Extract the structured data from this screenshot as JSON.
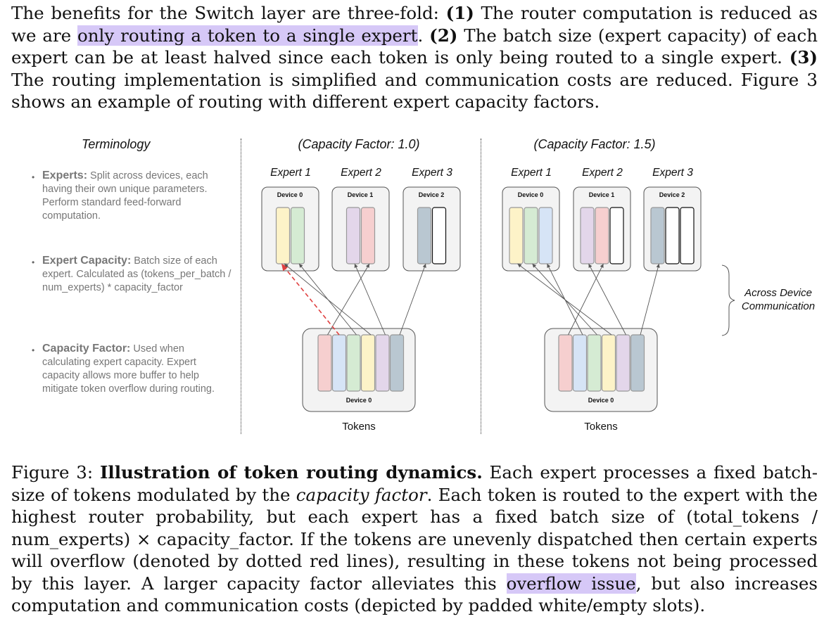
{
  "paragraph_top": {
    "intro": "The benefits for the Switch layer are three-fold: ",
    "b1": "(1)",
    "t1": " The router computation is reduced as we are ",
    "hl1": "only routing a token to a single expert",
    "t1b": ". ",
    "b2": "(2)",
    "t2": " The batch size (expert capacity) of each expert can be at least halved since each token is only being routed to a single expert. ",
    "b3": "(3)",
    "t3": " The routing implementation is simplified and communication costs are reduced.  Figure 3 shows an example of routing with different expert capacity factors."
  },
  "figure": {
    "terminology": {
      "title": "Terminology",
      "items": [
        {
          "name": "Experts:",
          "desc": " Split across devices, each having their own unique parameters. Perform standard feed-forward computation."
        },
        {
          "name": "Expert Capacity:",
          "desc": " Batch size of each expert. Calculated as (tokens_per_batch / num_experts) * capacity_factor"
        },
        {
          "name": "Capacity Factor:",
          "desc": " Used when calculating expert capacity. Expert capacity allows more buffer to help mitigate token overflow during routing."
        }
      ]
    },
    "panels": [
      {
        "title": "(Capacity Factor: 1.0)",
        "experts": [
          {
            "label": "Expert 1",
            "device": "Device 0",
            "slots": [
              "#fdf3c8",
              "#d5ebd3"
            ]
          },
          {
            "label": "Expert 2",
            "device": "Device 1",
            "slots": [
              "#e3d6ea",
              "#f6cfcf"
            ]
          },
          {
            "label": "Expert 3",
            "device": "Device 2",
            "slots": [
              "#b9c7d1",
              "#ffffff"
            ]
          }
        ],
        "tokens_device": "Device 0",
        "tokens_label": "Tokens"
      },
      {
        "title": "(Capacity Factor: 1.5)",
        "experts": [
          {
            "label": "Expert 1",
            "device": "Device 0",
            "slots": [
              "#fdf3c8",
              "#d5ebd3",
              "#d6e4f6"
            ]
          },
          {
            "label": "Expert 2",
            "device": "Device 1",
            "slots": [
              "#e3d6ea",
              "#f6cfcf",
              "#ffffff"
            ]
          },
          {
            "label": "Expert 3",
            "device": "Device 2",
            "slots": [
              "#b9c7d1",
              "#ffffff",
              "#ffffff"
            ]
          }
        ],
        "tokens_device": "Device 0",
        "tokens_label": "Tokens"
      }
    ],
    "tokens": [
      "#f6cfcf",
      "#d6e4f6",
      "#d5ebd3",
      "#fdf3c8",
      "#e3d6ea",
      "#b9c7d1"
    ],
    "comm_label_1": "Across Device",
    "comm_label_2": "Communication",
    "overflow_color": "#e04040"
  },
  "caption": {
    "fig": "Figure 3: ",
    "bold": "Illustration of token routing dynamics.",
    "t1": "  Each expert processes a fixed batch-size of tokens modulated by the ",
    "ital": "capacity factor",
    "t2": ". Each token is routed to the expert with the highest router probability, but each expert has a fixed batch size of (total_tokens / num_experts) × capacity_factor. If the tokens are unevenly dispatched then certain experts will overflow (denoted by dotted red lines), resulting in these tokens not being processed by this layer. A larger capacity factor alleviates this ",
    "hl": "overflow issue",
    "t3": ", but also increases computation and communication costs (depicted by padded white/empty slots)."
  }
}
